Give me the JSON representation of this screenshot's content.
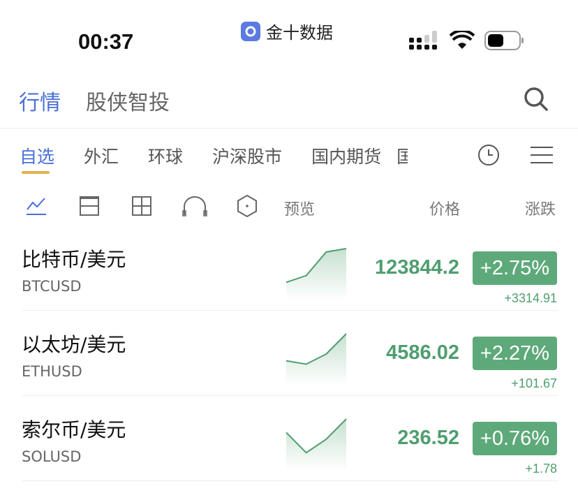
{
  "status_bar": {
    "time": "00:37",
    "app_name": "金十数据",
    "icons": [
      "signal-icon",
      "wifi-icon",
      "battery-icon"
    ]
  },
  "header": {
    "tabs": [
      {
        "label": "行情",
        "active": true
      },
      {
        "label": "股侠智投",
        "active": false
      }
    ],
    "search_icon": "search-icon"
  },
  "market_tabs": [
    {
      "label": "自选",
      "active": true
    },
    {
      "label": "外汇"
    },
    {
      "label": "环球"
    },
    {
      "label": "沪深股市"
    },
    {
      "label": "国内期货"
    },
    {
      "label": "国"
    }
  ],
  "toolbar": {
    "view_icons": [
      "line-chart-icon",
      "list-view-icon",
      "grid-view-icon",
      "headset-icon",
      "hexagon-icon"
    ],
    "preview_label": "预览",
    "price_label": "价格",
    "change_label": "涨跌"
  },
  "accent": "#4a6fd8",
  "up_color": "#5ea97a",
  "quotes": [
    {
      "name": "比特币/美元",
      "code": "BTCUSD",
      "price": "123844.2",
      "pct": "+2.75%",
      "change": "+3314.91",
      "spark": [
        1,
        2,
        5.5,
        6
      ]
    },
    {
      "name": "以太坊/美元",
      "code": "ETHUSD",
      "price": "4586.02",
      "pct": "+2.27%",
      "change": "+101.67",
      "spark": [
        2,
        1.5,
        3,
        6
      ]
    },
    {
      "name": "索尔币/美元",
      "code": "SOLUSD",
      "price": "236.52",
      "pct": "+0.76%",
      "change": "+1.78",
      "spark": [
        4,
        1,
        3,
        6
      ]
    }
  ]
}
